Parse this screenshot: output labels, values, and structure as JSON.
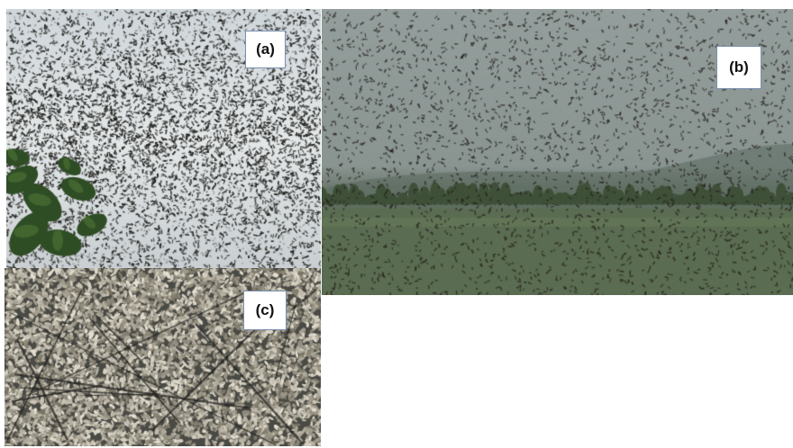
{
  "panels": [
    {
      "id": "a",
      "label": "(a)"
    },
    {
      "id": "b",
      "label": "(b)"
    },
    {
      "id": "c",
      "label": "(c)"
    }
  ],
  "colors": {
    "label_border": "#7a8fb0",
    "sky_a": "#d7dde0",
    "sky_b": "#8c9694",
    "field_b": "#5d6e55",
    "swarm_dark": "#2a2a22",
    "leaves": "#2f4d25"
  }
}
